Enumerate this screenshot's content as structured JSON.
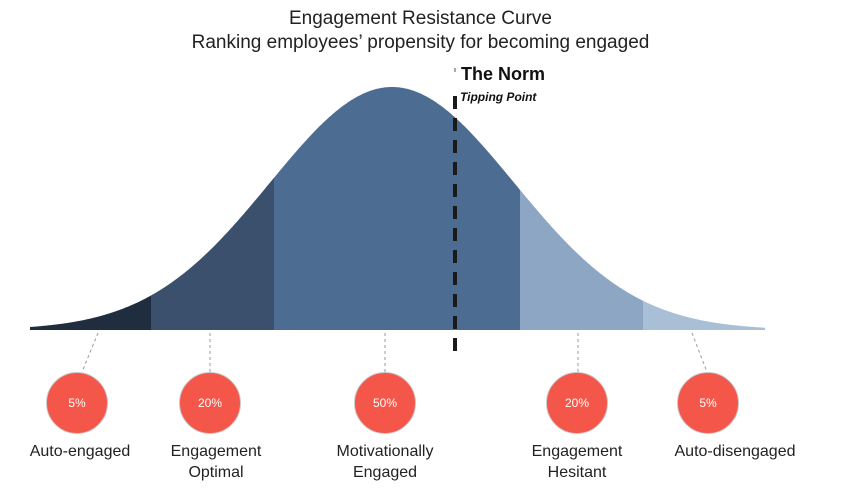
{
  "title": "Engagement Resistance Curve",
  "subtitle": "Ranking employees’ propensity for becoming engaged",
  "norm": {
    "label": "The Norm",
    "sublabel": "Tipping Point"
  },
  "segments": [
    {
      "percent": "5%",
      "label_line1": "Auto-engaged",
      "label_line2": "",
      "color": "#1f2d3e"
    },
    {
      "percent": "20%",
      "label_line1": "Engagement",
      "label_line2": "Optimal",
      "color": "#3b506c"
    },
    {
      "percent": "50%",
      "label_line1": "Motivationally",
      "label_line2": "Engaged",
      "color": "#4d6c92"
    },
    {
      "percent": "20%",
      "label_line1": "Engagement",
      "label_line2": "Hesitant",
      "color": "#8da6c4"
    },
    {
      "percent": "5%",
      "label_line1": "Auto-disengaged",
      "label_line2": "",
      "color": "#a9bfd6"
    }
  ],
  "accent_color": "#f4574a"
}
